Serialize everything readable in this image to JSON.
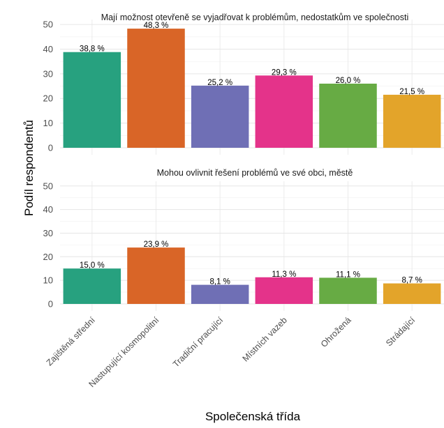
{
  "chart_data": {
    "type": "bar",
    "xlabel": "Společenská třída",
    "ylabel": "Podíl respondentů",
    "categories": [
      "Zajištěná střední",
      "Nastupující kosmopolitní",
      "Tradiční pracující",
      "Místních vazeb",
      "Ohrožená",
      "Strádající"
    ],
    "colors": [
      "#27a17f",
      "#d96527",
      "#6f6fb5",
      "#e4338a",
      "#67ab44",
      "#e3a42a"
    ],
    "ylim": [
      0,
      52
    ],
    "yticks": [
      "0",
      "10",
      "20",
      "30",
      "40",
      "50"
    ],
    "grid": true,
    "panels": [
      {
        "title": "Mají možnost otevřeně se vyjadřovat k problémům, nedostatkům ve společnosti",
        "values": [
          38.8,
          48.3,
          25.2,
          29.3,
          26.0,
          21.5
        ],
        "labels": [
          "38,8 %",
          "48,3 %",
          "25,2 %",
          "29,3 %",
          "26,0 %",
          "21,5 %"
        ]
      },
      {
        "title": "Mohou ovlivnit řešení problémů ve své obci, městě",
        "values": [
          15.0,
          23.9,
          8.1,
          11.3,
          11.1,
          8.7
        ],
        "labels": [
          "15,0 %",
          "23,9 %",
          "8,1 %",
          "11,3 %",
          "11,1 %",
          "8,7 %"
        ]
      }
    ]
  }
}
